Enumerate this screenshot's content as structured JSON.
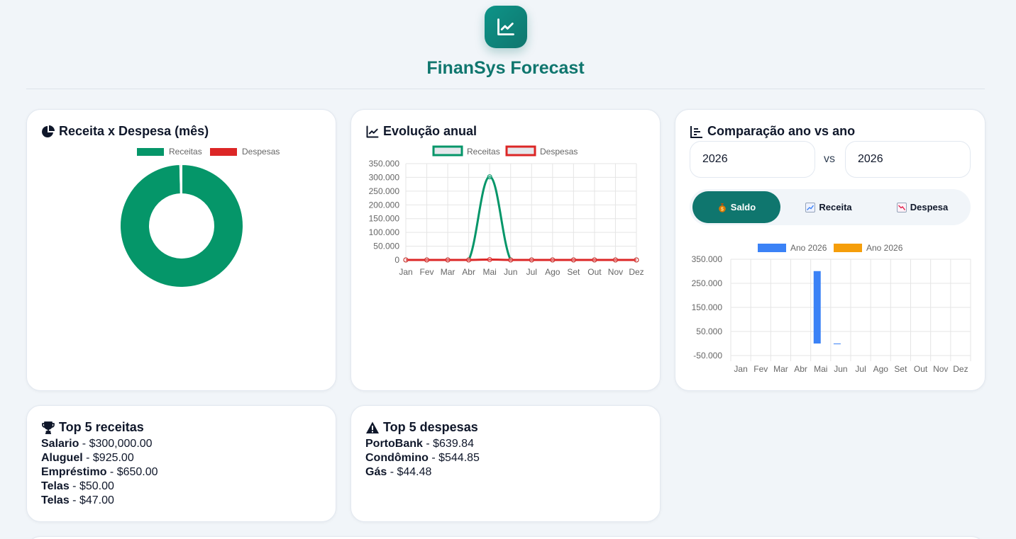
{
  "app": {
    "title": "FinanSys Forecast",
    "logo_icon": "chart-line-icon",
    "accent": "#0f766e"
  },
  "donut_card": {
    "title": "Receita x Despesa (mês)",
    "icon": "pie-chart-icon",
    "chart_data": {
      "type": "pie",
      "labels": [
        "Receitas",
        "Despesas"
      ],
      "values": [
        301972.0,
        1229.17
      ],
      "colors": [
        "#059669",
        "#dc2626"
      ],
      "legend": "top"
    }
  },
  "line_card": {
    "title": "Evolução anual",
    "icon": "chart-line-icon",
    "chart_data": {
      "type": "line",
      "categories": [
        "Jan",
        "Fev",
        "Mar",
        "Abr",
        "Mai",
        "Jun",
        "Jul",
        "Ago",
        "Set",
        "Out",
        "Nov",
        "Dez"
      ],
      "series": [
        {
          "name": "Receitas",
          "color": "#059669",
          "values": [
            0,
            0,
            0,
            0,
            302000,
            0,
            0,
            0,
            0,
            0,
            0,
            0
          ]
        },
        {
          "name": "Despesas",
          "color": "#dc2626",
          "values": [
            0,
            0,
            0,
            0,
            1229,
            0,
            0,
            0,
            0,
            0,
            0,
            0
          ]
        }
      ],
      "yticks": [
        "0",
        "50.000",
        "100.000",
        "150.000",
        "200.000",
        "250.000",
        "300.000",
        "350.000"
      ],
      "ylim": [
        0,
        350000
      ],
      "grid": true,
      "legend": "top"
    }
  },
  "compare_card": {
    "title": "Comparação ano vs ano",
    "icon": "bar-chart-icon",
    "year_a": "2026",
    "vs": "vs",
    "year_b": "2026",
    "tabs": [
      {
        "label": "Saldo",
        "icon": "money-bag-icon",
        "active": true
      },
      {
        "label": "Receita",
        "icon": "chart-up-icon",
        "active": false
      },
      {
        "label": "Despesa",
        "icon": "chart-down-icon",
        "active": false
      }
    ],
    "chart_data": {
      "type": "bar",
      "categories": [
        "Jan",
        "Fev",
        "Mar",
        "Abr",
        "Mai",
        "Jun",
        "Jul",
        "Ago",
        "Set",
        "Out",
        "Nov",
        "Dez"
      ],
      "series": [
        {
          "name": "Ano 2026",
          "color": "#3b82f6",
          "values": [
            0,
            0,
            0,
            0,
            300743,
            -1229,
            0,
            0,
            0,
            0,
            0,
            0
          ]
        },
        {
          "name": "Ano 2026",
          "color": "#f59e0b",
          "values": [
            0,
            0,
            0,
            0,
            0,
            0,
            0,
            0,
            0,
            0,
            0,
            0
          ]
        }
      ],
      "yticks": [
        "-50.000",
        "50.000",
        "150.000",
        "250.000",
        "350.000"
      ],
      "ylim": [
        -50000,
        350000
      ],
      "grid": true,
      "legend": "top"
    }
  },
  "top_receitas": {
    "title": "Top 5 receitas",
    "icon": "trophy-icon",
    "items": [
      {
        "name": "Salario",
        "value": "$300,000.00"
      },
      {
        "name": "Aluguel",
        "value": "$925.00"
      },
      {
        "name": "Empréstimo",
        "value": "$650.00"
      },
      {
        "name": "Telas",
        "value": "$50.00"
      },
      {
        "name": "Telas",
        "value": "$47.00"
      }
    ]
  },
  "top_despesas": {
    "title": "Top 5 despesas",
    "icon": "warning-icon",
    "items": [
      {
        "name": "PortoBank",
        "value": "$639.84"
      },
      {
        "name": "Condômino",
        "value": "$544.85"
      },
      {
        "name": "Gás",
        "value": "$44.48"
      }
    ]
  }
}
